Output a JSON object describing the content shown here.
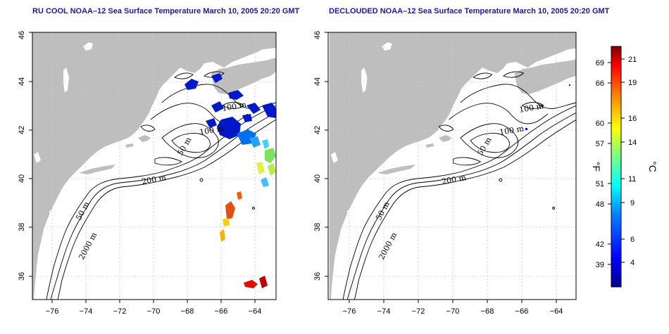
{
  "titles": {
    "left": "RU COOL NOAA–12 Sea Surface Temperature March 10, 2005 20:20 GMT",
    "right": "DECLOUDED NOAA–12 Sea Surface Temperature March 10, 2005 20:20 GMT"
  },
  "axes": {
    "lon_ticks": [
      "−76",
      "−74",
      "−72",
      "−70",
      "−68",
      "−66",
      "−64"
    ],
    "lat_ticks": [
      "36",
      "38",
      "40",
      "42",
      "44",
      "46"
    ]
  },
  "contour_labels": {
    "left": [
      "100 m",
      "100 m",
      "50 m",
      "200 m",
      "50 m",
      "2000 m"
    ],
    "right": [
      "100 m",
      "100 m",
      "50 m",
      "200 m",
      "50 m",
      "2000 m"
    ]
  },
  "colorbar": {
    "fahrenheit_ticks": [
      "69",
      "66",
      "60",
      "57",
      "51",
      "48",
      "42",
      "39"
    ],
    "celsius_ticks": [
      "21",
      "19",
      "16",
      "14",
      "11",
      "9",
      "6",
      "4"
    ],
    "unit_f": "°F",
    "unit_c": "°C",
    "colors": [
      "#00008f",
      "#0000ff",
      "#0080ff",
      "#00ffff",
      "#80ff80",
      "#ffff00",
      "#ff8000",
      "#ff0000",
      "#800000"
    ]
  },
  "colors": {
    "land": "#bebebe",
    "ocean": "#ffffff",
    "grid": "#c8c8c8",
    "contour": "#000000",
    "title": "#1a1a9c"
  }
}
